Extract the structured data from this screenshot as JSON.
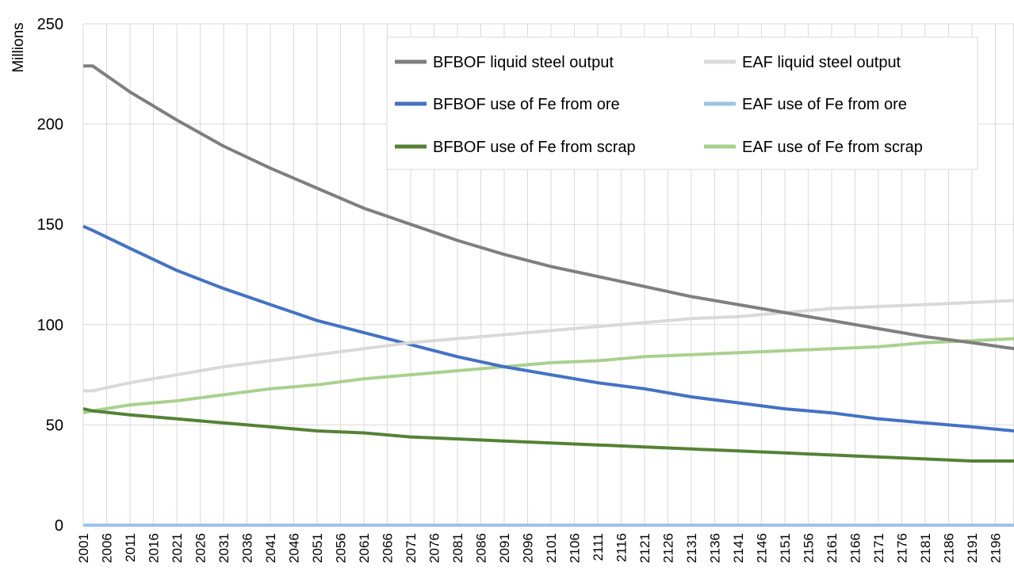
{
  "chart_data": {
    "type": "line",
    "ylabel": "Millions",
    "ylim": [
      0,
      250
    ],
    "yticks": [
      0,
      50,
      100,
      150,
      200,
      250
    ],
    "xlim": [
      2001,
      2200
    ],
    "xtick_labels": [
      "2001",
      "2006",
      "2011",
      "2016",
      "2021",
      "2026",
      "2031",
      "2036",
      "2041",
      "2046",
      "2051",
      "2056",
      "2061",
      "2066",
      "2071",
      "2076",
      "2081",
      "2086",
      "2091",
      "2096",
      "2101",
      "2106",
      "2111",
      "2116",
      "2121",
      "2126",
      "2131",
      "2136",
      "2141",
      "2146",
      "2151",
      "2156",
      "2161",
      "2166",
      "2171",
      "2176",
      "2181",
      "2186",
      "2191",
      "2196"
    ],
    "grid": true,
    "legend_position": "top-right",
    "x": [
      2001,
      2003,
      2011,
      2021,
      2031,
      2041,
      2051,
      2061,
      2071,
      2081,
      2091,
      2101,
      2111,
      2121,
      2131,
      2141,
      2151,
      2161,
      2171,
      2181,
      2191,
      2200
    ],
    "series": [
      {
        "name": "BFBOF liquid steel output",
        "color": "#7f7f7f",
        "values": [
          229,
          229,
          216,
          202,
          189,
          178,
          168,
          158,
          150,
          142,
          135,
          129,
          124,
          119,
          114,
          110,
          106,
          102,
          98,
          94,
          91,
          88
        ]
      },
      {
        "name": "EAF liquid steel output",
        "color": "#d9d9d9",
        "values": [
          67,
          67,
          71,
          75,
          79,
          82,
          85,
          88,
          91,
          93,
          95,
          97,
          99,
          101,
          103,
          104,
          106,
          108,
          109,
          110,
          111,
          112
        ]
      },
      {
        "name": "BFBOF use of Fe from ore",
        "color": "#4472c4",
        "values": [
          149,
          147,
          138,
          127,
          118,
          110,
          102,
          96,
          90,
          84,
          79,
          75,
          71,
          68,
          64,
          61,
          58,
          56,
          53,
          51,
          49,
          47
        ]
      },
      {
        "name": "EAF use of Fe from ore",
        "color": "#9dc3e6",
        "values": [
          0,
          0,
          0,
          0,
          0,
          0,
          0,
          0,
          0,
          0,
          0,
          0,
          0,
          0,
          0,
          0,
          0,
          0,
          0,
          0,
          0,
          0
        ]
      },
      {
        "name": "BFBOF use of Fe from scrap",
        "color": "#548235",
        "values": [
          58,
          57,
          55,
          53,
          51,
          49,
          47,
          46,
          44,
          43,
          42,
          41,
          40,
          39,
          38,
          37,
          36,
          35,
          34,
          33,
          32,
          32
        ]
      },
      {
        "name": "EAF use of Fe from scrap",
        "color": "#a9d18e",
        "values": [
          56,
          57,
          60,
          62,
          65,
          68,
          70,
          73,
          75,
          77,
          79,
          81,
          82,
          84,
          85,
          86,
          87,
          88,
          89,
          91,
          92,
          93
        ]
      }
    ]
  }
}
